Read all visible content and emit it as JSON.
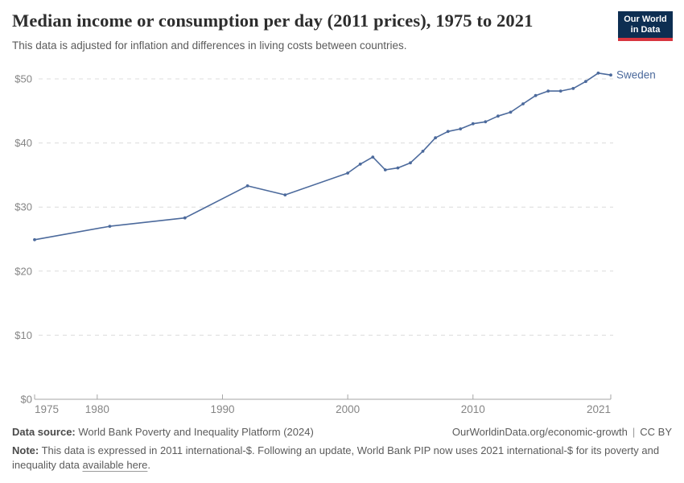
{
  "header": {
    "title": "Median income or consumption per day (2011 prices), 1975 to 2021",
    "subtitle": "This data is adjusted for inflation and differences in living costs between countries.",
    "logo": {
      "line1": "Our World",
      "line2": "in Data"
    }
  },
  "chart_data": {
    "type": "line",
    "title": "Median income or consumption per day (2011 prices), 1975 to 2021",
    "xlabel": "",
    "ylabel": "",
    "xlim": [
      1975,
      2021
    ],
    "ylim": [
      0,
      50
    ],
    "x_ticks": [
      1975,
      1980,
      1990,
      2000,
      2010,
      2021
    ],
    "y_ticks": [
      0,
      10,
      20,
      30,
      40,
      50
    ],
    "y_tick_prefix": "$",
    "grid": "horizontal-dashed",
    "legend_position": "end-of-line-label",
    "series": [
      {
        "name": "Sweden",
        "color": "#4C6A9C",
        "x": [
          1975,
          1981,
          1987,
          1992,
          1995,
          2000,
          2001,
          2002,
          2003,
          2004,
          2005,
          2006,
          2007,
          2008,
          2009,
          2010,
          2011,
          2012,
          2013,
          2014,
          2015,
          2016,
          2017,
          2018,
          2019,
          2020,
          2021
        ],
        "y": [
          24.9,
          27.0,
          28.3,
          33.3,
          31.9,
          35.3,
          36.7,
          37.8,
          35.8,
          36.1,
          36.9,
          38.7,
          40.8,
          41.8,
          42.2,
          43.0,
          43.3,
          44.2,
          44.8,
          46.1,
          47.4,
          48.1,
          48.1,
          48.5,
          49.6,
          50.9,
          50.6
        ]
      }
    ]
  },
  "footer": {
    "datasource_label": "Data source:",
    "datasource_text": " World Bank Poverty and Inequality Platform (2024)",
    "attribution": "OurWorldinData.org/economic-growth",
    "separator": "|",
    "license": "CC BY",
    "note_label": "Note:",
    "note_text": " This data is expressed in 2011 international-$. Following an update, World Bank PIP now uses 2021 international-$ for its poverty and inequality data ",
    "note_link": "available here",
    "note_suffix": "."
  },
  "colors": {
    "series_line": "#4C6A9C",
    "gridline": "#dcdcdc",
    "axis_line": "#a5a5a5",
    "tick_label": "#858585",
    "title_text": "#2d2d2d",
    "subtitle_text": "#5b5b5b",
    "footer_text": "#5b5b5b",
    "logo_navy": "#0d2e52",
    "logo_red": "#d8353f"
  }
}
